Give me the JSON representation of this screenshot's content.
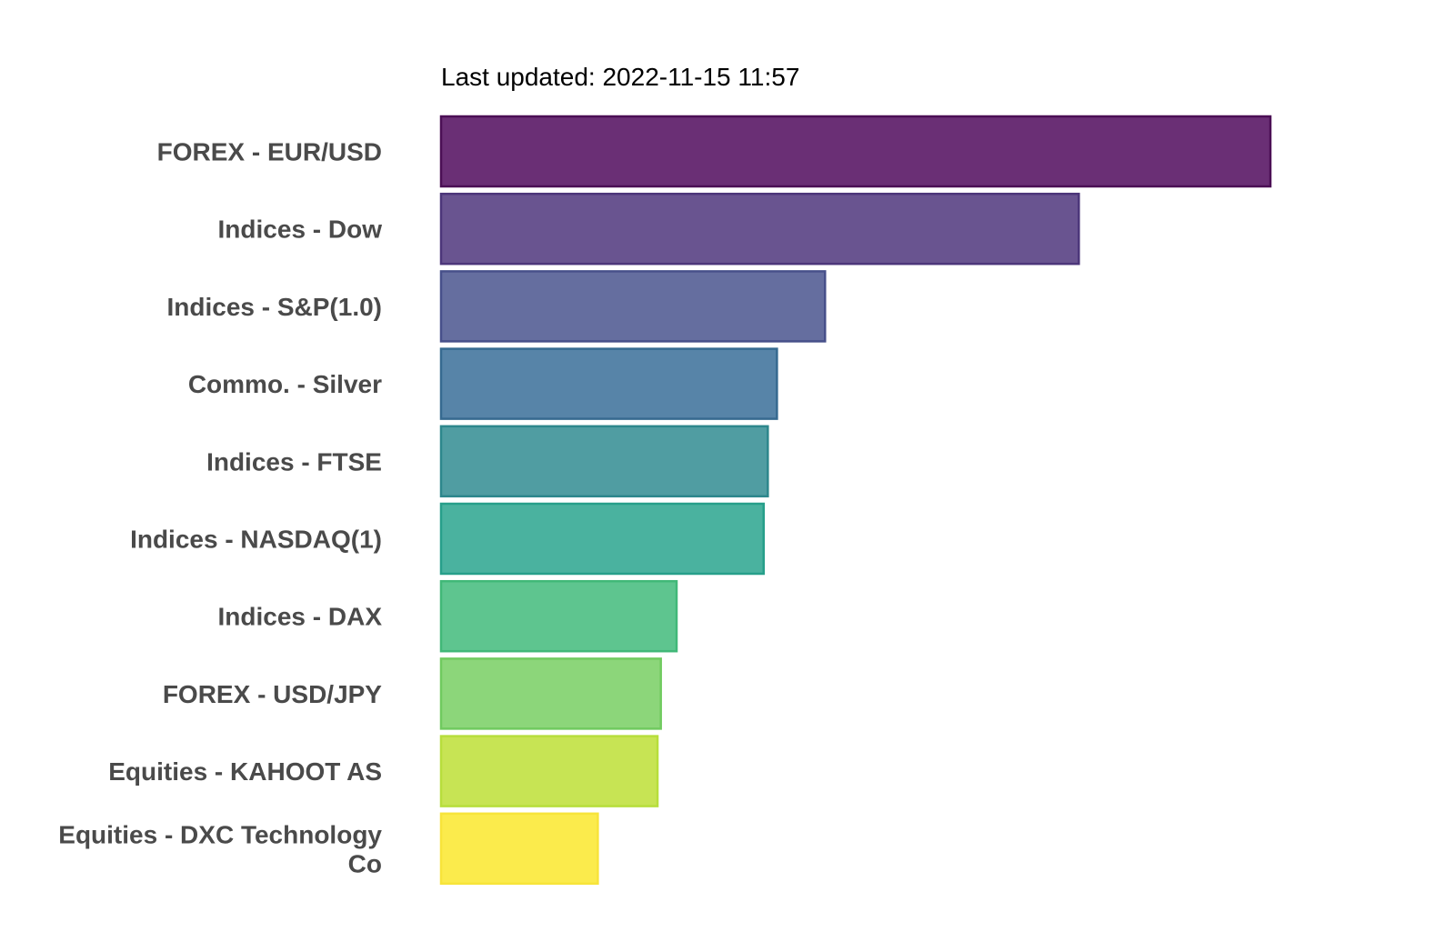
{
  "chart_data": {
    "type": "bar",
    "orientation": "horizontal",
    "subtitle": "Last updated: 2022-11-15 11:57",
    "title": "",
    "xlabel": "",
    "ylabel": "",
    "grid": false,
    "legend": "none",
    "xlim": [
      0,
      100
    ],
    "categories": [
      "FOREX - EUR/USD",
      "Indices - Dow",
      "Indices - S&P(1.0)",
      "Commo. - Silver",
      "Indices - FTSE",
      "Indices - NASDAQ(1)",
      "Indices - DAX",
      "FOREX - USD/JPY",
      "Equities - KAHOOT AS",
      "Equities - DXC Technology Co"
    ],
    "values": [
      100,
      76.9,
      46.3,
      40.5,
      39.4,
      38.9,
      28.4,
      26.5,
      26.1,
      18.9
    ],
    "colors": [
      "#6a2f75",
      "#695490",
      "#656e9f",
      "#5784a8",
      "#509da2",
      "#4ab29f",
      "#5ec58f",
      "#8cd67a",
      "#c7e454",
      "#fbeb4c"
    ],
    "border_colors": [
      "#4b0f55",
      "#4c367a",
      "#47508a",
      "#366a90",
      "#2d878c",
      "#279f8a",
      "#41b878",
      "#70ca5f",
      "#b7de3c",
      "#f7e43a"
    ]
  }
}
